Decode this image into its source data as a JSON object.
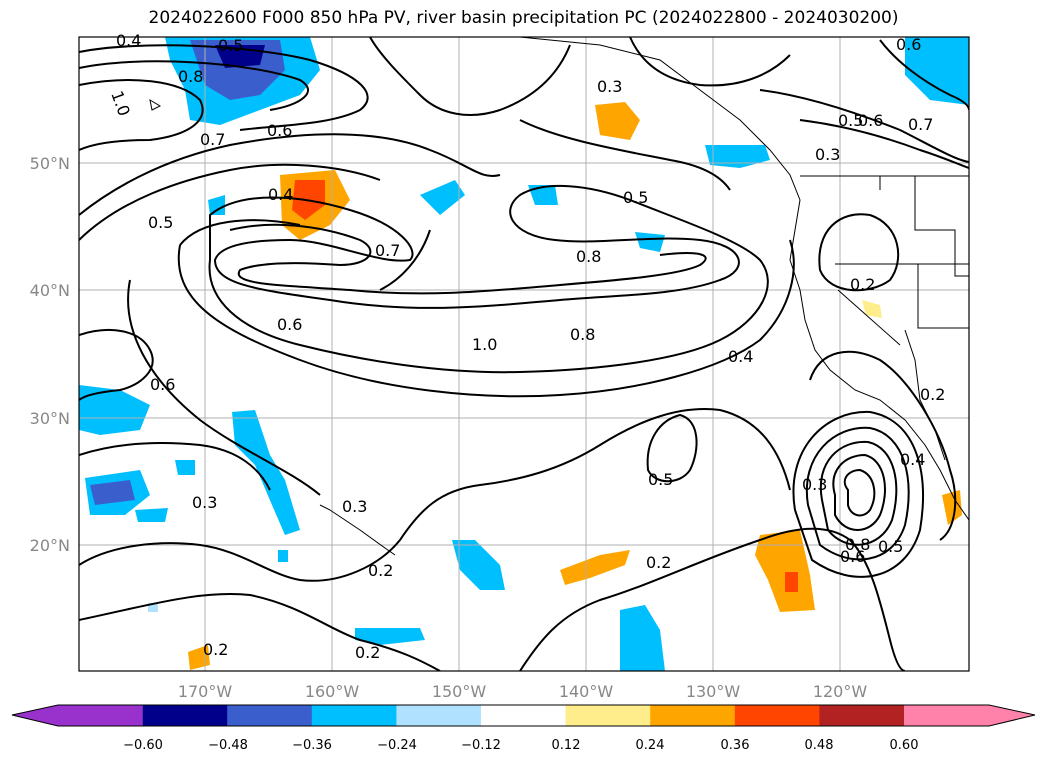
{
  "title": "2024022600 F000 850 hPa PV, river basin precipitation PC (2024022800 - 2024030200)",
  "lat_labels": [
    "50°N",
    "40°N",
    "30°N",
    "20°N"
  ],
  "lon_labels": [
    "170°W",
    "160°W",
    "150°W",
    "140°W",
    "130°W",
    "120°W"
  ],
  "contour_labels": [
    "0.4",
    "0.5",
    "0.8",
    "1.0",
    "0.7",
    "0.6",
    "0.4",
    "0.5",
    "0.7",
    "0.6",
    "1.0",
    "0.8",
    "0.5",
    "0.8",
    "0.3",
    "0.5",
    "0.6",
    "0.7",
    "0.3",
    "0.2",
    "0.4",
    "0.6",
    "0.3",
    "0.3",
    "0.2",
    "0.2",
    "0.2",
    "0.5",
    "0.3",
    "0.8",
    "0.6",
    "0.5",
    "0.4",
    "0.2",
    "0.6",
    "0.2"
  ],
  "colorbar": {
    "tick_labels": [
      "−0.60",
      "−0.48",
      "−0.36",
      "−0.24",
      "−0.12",
      "0.12",
      "0.24",
      "0.36",
      "0.48",
      "0.60"
    ],
    "colors": [
      "#9932cc",
      "#00008b",
      "#3a5fcd",
      "#00bfff",
      "#b0e2ff",
      "#ffffff",
      "#ffec8b",
      "#ffa500",
      "#ff4500",
      "#b22222",
      "#ff82ab"
    ]
  }
}
